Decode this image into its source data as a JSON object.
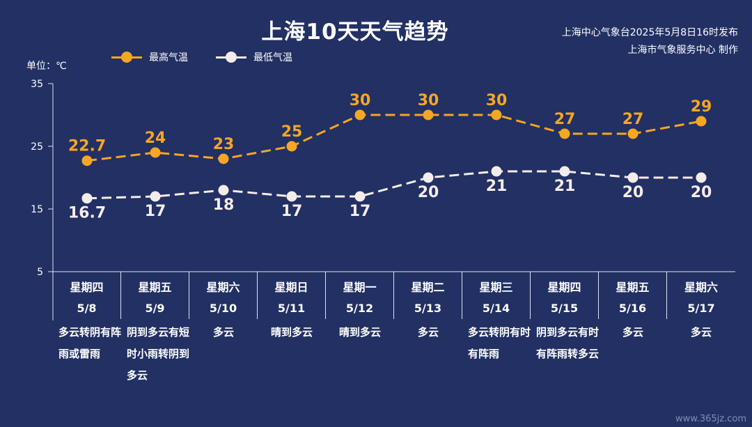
{
  "title": "上海10天天气趋势",
  "source_line1": "上海中心气象台2025年5月8日16时发布",
  "source_line2": "上海市气象服务中心 制作",
  "unit_label": "单位：℃",
  "watermark": "www.365jz.com",
  "colors": {
    "background": "#223063",
    "high": "#F5A623",
    "low": "#F4ECEC",
    "axis": "#dde4f3"
  },
  "days": [
    {
      "weekday": "星期四",
      "date": "5/8",
      "weather": "多云转阴有阵雨或雷雨"
    },
    {
      "weekday": "星期五",
      "date": "5/9",
      "weather": "阴到多云有短时小雨转阴到多云"
    },
    {
      "weekday": "星期六",
      "date": "5/10",
      "weather": "多云"
    },
    {
      "weekday": "星期日",
      "date": "5/11",
      "weather": "晴到多云"
    },
    {
      "weekday": "星期一",
      "date": "5/12",
      "weather": "晴到多云"
    },
    {
      "weekday": "星期二",
      "date": "5/13",
      "weather": "多云"
    },
    {
      "weekday": "星期三",
      "date": "5/14",
      "weather": "多云转阴有时有阵雨"
    },
    {
      "weekday": "星期四",
      "date": "5/15",
      "weather": "阴到多云有时有阵雨转多云"
    },
    {
      "weekday": "星期五",
      "date": "5/16",
      "weather": "多云"
    },
    {
      "weekday": "星期六",
      "date": "5/17",
      "weather": "多云"
    }
  ],
  "chart_data": {
    "type": "line",
    "categories": [
      "5/8",
      "5/9",
      "5/10",
      "5/11",
      "5/12",
      "5/13",
      "5/14",
      "5/15",
      "5/16",
      "5/17"
    ],
    "series": [
      {
        "name": "最高气温",
        "values": [
          22.7,
          24,
          23,
          25,
          30,
          30,
          30,
          27,
          27,
          29
        ],
        "labels": [
          "22.7",
          "24",
          "23",
          "25",
          "30",
          "30",
          "30",
          "27",
          "27",
          "29"
        ],
        "color": "#F5A623",
        "dashed": true
      },
      {
        "name": "最低气温",
        "values": [
          16.7,
          17,
          18,
          17,
          17,
          20,
          21,
          21,
          20,
          20
        ],
        "labels": [
          "16.7",
          "17",
          "18",
          "17",
          "17",
          "20",
          "21",
          "21",
          "20",
          "20"
        ],
        "color": "#F4ECEC",
        "dashed": true
      }
    ],
    "yticks": [
      5,
      15,
      25,
      35
    ],
    "ytick_labels": [
      "5",
      "15",
      "25",
      "35"
    ],
    "ylim": [
      5,
      35
    ],
    "legend": "top-left",
    "grid": false
  }
}
